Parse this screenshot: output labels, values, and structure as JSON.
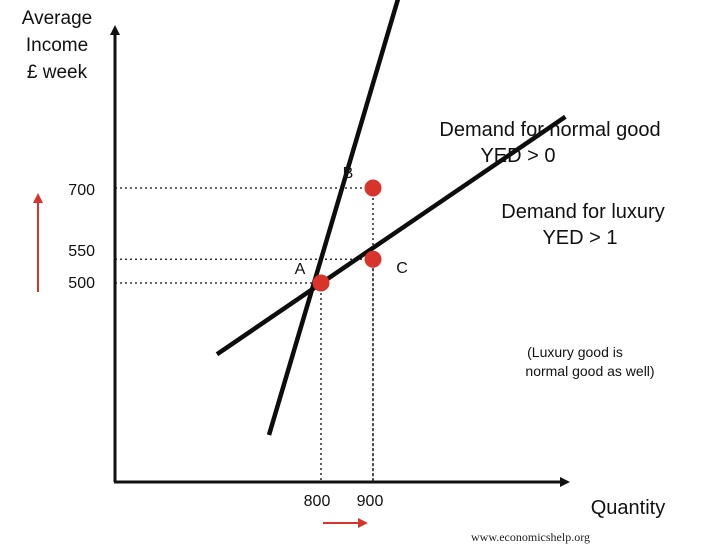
{
  "chart_data": {
    "type": "line",
    "title": "",
    "ylabel_lines": [
      "Average",
      "Income",
      "£ week"
    ],
    "xlabel": "Quantity",
    "yticks": [
      {
        "value": 700,
        "label": "700"
      },
      {
        "value": 550,
        "label": "550"
      },
      {
        "value": 500,
        "label": "500"
      }
    ],
    "xticks": [
      {
        "value": 800,
        "label": "800"
      },
      {
        "value": 900,
        "label": "900"
      }
    ],
    "series": [
      {
        "name": "Demand for normal good",
        "label_lines": [
          "Demand for normal good",
          "YED > 0"
        ],
        "x": [
          700,
          1000
        ],
        "y": [
          180,
          1290
        ]
      },
      {
        "name": "Demand for luxury",
        "label_lines": [
          "Demand for luxury",
          "YED > 1"
        ],
        "x": [
          600,
          1270
        ],
        "y": [
          350,
          850
        ]
      }
    ],
    "points": [
      {
        "label": "A",
        "x": 800,
        "y": 500
      },
      {
        "label": "B",
        "x": 900,
        "y": 700
      },
      {
        "label": "C",
        "x": 900,
        "y": 550
      }
    ],
    "guides": [
      {
        "x": 800,
        "y": 500
      },
      {
        "x": 900,
        "y": 700
      },
      {
        "x": 900,
        "y": 550
      }
    ],
    "xlim": [
      600,
      1350
    ],
    "ylim": [
      0,
      1000
    ],
    "colors": {
      "axis": "#111111",
      "line": "#0d0d0d",
      "point": "#d9342b",
      "arrow": "#d9342b",
      "guide": "#333333"
    }
  },
  "annotations": {
    "note_lines": [
      "(Luxury good is",
      "normal good as well)"
    ],
    "source": "www.economicshelp.org"
  }
}
